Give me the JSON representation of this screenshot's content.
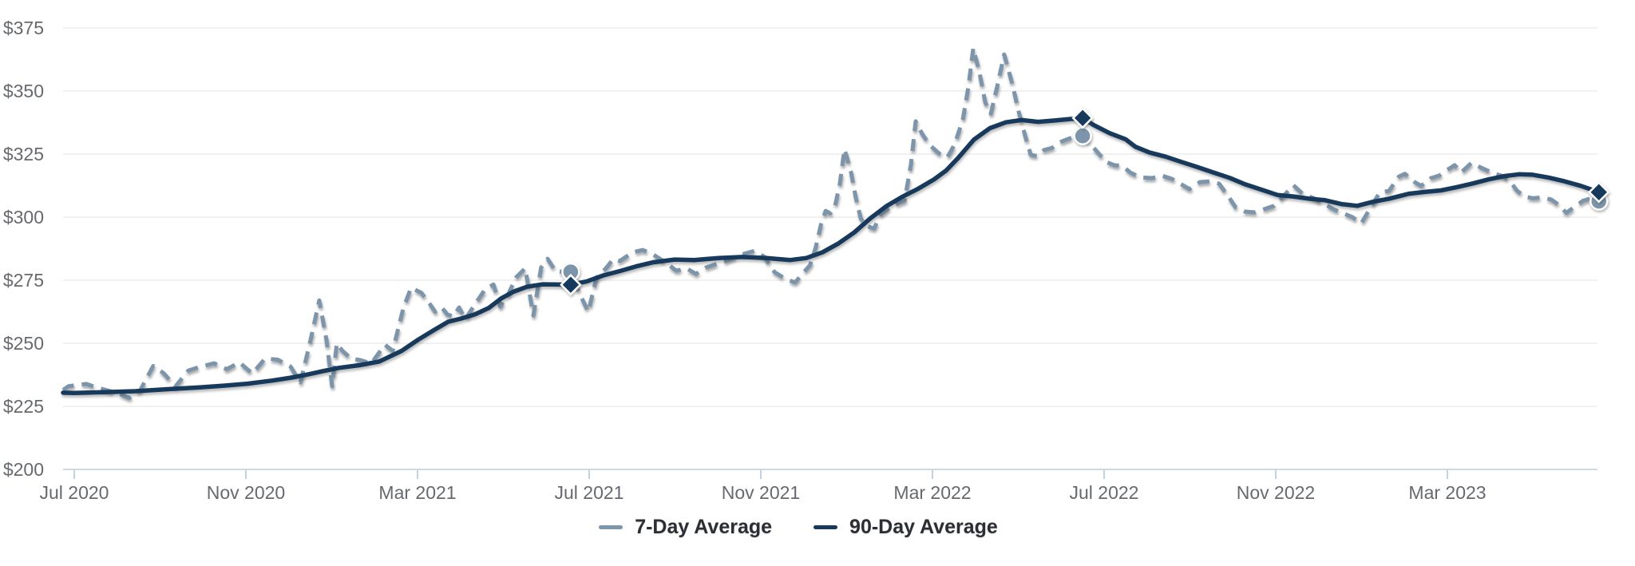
{
  "background": "#ffffff",
  "colors": {
    "seven_day": "#7d95ab",
    "ninety_day": "#17395c",
    "grid": "#e3e3e3",
    "baseline": "#ccdae8",
    "tick": "#c2d2e2",
    "axis_text": "#66696e",
    "legend_text": "#2b2f33",
    "marker_outline": "#ffffff"
  },
  "chart_data": {
    "type": "line",
    "title": "",
    "xlabel": "",
    "ylabel": "",
    "grid": true,
    "legend_position": "bottom",
    "x_axis": {
      "unit": "months since Jul 2020",
      "range": [
        -0.4,
        35.75
      ],
      "tick_values": [
        0,
        4,
        8,
        12,
        16,
        20,
        24,
        28,
        32
      ],
      "tick_labels": [
        "Jul 2020",
        "Nov 2020",
        "Mar 2021",
        "Jul 2021",
        "Nov 2021",
        "Mar 2022",
        "Jul 2022",
        "Nov 2022",
        "Mar 2023"
      ]
    },
    "y_axis": {
      "range": [
        200,
        375
      ],
      "tick_values": [
        200,
        225,
        250,
        275,
        300,
        325,
        350,
        375
      ],
      "tick_labels": [
        "$200",
        "$225",
        "$250",
        "$275",
        "$300",
        "$325",
        "$350",
        "$375"
      ],
      "prefix": "$"
    },
    "series": [
      {
        "name": "7-Day Average",
        "style": "dashed",
        "color": "#7d95ab",
        "points": [
          [
            -0.26,
            231.5
          ],
          [
            -0.13,
            233.0
          ],
          [
            0.28,
            233.9
          ],
          [
            0.54,
            232.4
          ],
          [
            0.8,
            231.2
          ],
          [
            1.06,
            230.0
          ],
          [
            1.28,
            228.3
          ],
          [
            1.54,
            231.5
          ],
          [
            1.84,
            241.0
          ],
          [
            2.08,
            238.2
          ],
          [
            2.36,
            232.9
          ],
          [
            2.66,
            239.2
          ],
          [
            2.96,
            240.8
          ],
          [
            3.26,
            242.1
          ],
          [
            3.55,
            239.7
          ],
          [
            3.85,
            242.4
          ],
          [
            4.15,
            238.0
          ],
          [
            4.45,
            244.0
          ],
          [
            4.74,
            243.5
          ],
          [
            5.04,
            240.8
          ],
          [
            5.27,
            234.5
          ],
          [
            5.49,
            250.0
          ],
          [
            5.71,
            267.0
          ],
          [
            5.88,
            251.0
          ],
          [
            6.01,
            233.0
          ],
          [
            6.12,
            250.0
          ],
          [
            6.25,
            247.0
          ],
          [
            6.45,
            244.0
          ],
          [
            6.68,
            243.3
          ],
          [
            6.92,
            242.0
          ],
          [
            7.24,
            249.4
          ],
          [
            7.42,
            247.0
          ],
          [
            7.67,
            264.0
          ],
          [
            7.85,
            272.0
          ],
          [
            8.09,
            270.0
          ],
          [
            8.27,
            266.0
          ],
          [
            8.41,
            262.5
          ],
          [
            8.56,
            264.3
          ],
          [
            8.69,
            261.5
          ],
          [
            8.83,
            260.6
          ],
          [
            8.97,
            264.2
          ],
          [
            9.11,
            259.5
          ],
          [
            9.34,
            265.5
          ],
          [
            9.58,
            271.5
          ],
          [
            9.77,
            273.3
          ],
          [
            9.93,
            264.5
          ],
          [
            10.12,
            269.6
          ],
          [
            10.29,
            276.0
          ],
          [
            10.51,
            279.7
          ],
          [
            10.7,
            261.0
          ],
          [
            10.88,
            280.0
          ],
          [
            11.03,
            283.5
          ],
          [
            11.22,
            278.5
          ],
          [
            11.57,
            278.3
          ],
          [
            11.78,
            269.6
          ],
          [
            11.98,
            262.5
          ],
          [
            12.17,
            276.0
          ],
          [
            12.39,
            279.7
          ],
          [
            12.56,
            283.4
          ],
          [
            12.71,
            282.6
          ],
          [
            13.02,
            286.1
          ],
          [
            13.25,
            287.0
          ],
          [
            13.49,
            285.2
          ],
          [
            13.73,
            282.6
          ],
          [
            14.03,
            278.8
          ],
          [
            14.27,
            279.7
          ],
          [
            14.49,
            277.5
          ],
          [
            14.73,
            280.1
          ],
          [
            15.16,
            282.5
          ],
          [
            15.53,
            285.1
          ],
          [
            15.85,
            286.6
          ],
          [
            16.09,
            284.2
          ],
          [
            16.32,
            278.2
          ],
          [
            16.6,
            275.3
          ],
          [
            16.8,
            274.1
          ],
          [
            17.02,
            278.5
          ],
          [
            17.15,
            281.0
          ],
          [
            17.28,
            288.0
          ],
          [
            17.4,
            297.0
          ],
          [
            17.51,
            302.5
          ],
          [
            17.62,
            301.5
          ],
          [
            17.73,
            304.5
          ],
          [
            17.84,
            313.0
          ],
          [
            17.95,
            327.0
          ],
          [
            18.1,
            318.0
          ],
          [
            18.21,
            308.0
          ],
          [
            18.33,
            299.5
          ],
          [
            18.46,
            296.5
          ],
          [
            18.64,
            295.5
          ],
          [
            18.79,
            301.0
          ],
          [
            18.98,
            303.5
          ],
          [
            19.2,
            305.5
          ],
          [
            19.35,
            306.5
          ],
          [
            19.5,
            321.0
          ],
          [
            19.61,
            338.0
          ],
          [
            19.76,
            333.0
          ],
          [
            19.94,
            328.5
          ],
          [
            20.15,
            325.3
          ],
          [
            20.35,
            323.8
          ],
          [
            20.52,
            329.0
          ],
          [
            20.71,
            339.0
          ],
          [
            20.84,
            352.0
          ],
          [
            20.95,
            367.0
          ],
          [
            21.1,
            357.0
          ],
          [
            21.23,
            345.5
          ],
          [
            21.36,
            341.0
          ],
          [
            21.51,
            352.0
          ],
          [
            21.67,
            364.5
          ],
          [
            21.86,
            352.8
          ],
          [
            22.01,
            341.8
          ],
          [
            22.16,
            332.3
          ],
          [
            22.29,
            324.7
          ],
          [
            22.44,
            324.2
          ],
          [
            22.6,
            326.6
          ],
          [
            22.79,
            327.5
          ],
          [
            23.01,
            330.0
          ],
          [
            23.24,
            331.5
          ],
          [
            23.5,
            332.2
          ],
          [
            23.68,
            329.1
          ],
          [
            23.87,
            325.3
          ],
          [
            24.06,
            321.8
          ],
          [
            24.24,
            320.6
          ],
          [
            24.43,
            320.3
          ],
          [
            24.61,
            317.7
          ],
          [
            24.84,
            315.8
          ],
          [
            25.12,
            315.5
          ],
          [
            25.34,
            316.5
          ],
          [
            25.58,
            315.2
          ],
          [
            25.77,
            313.3
          ],
          [
            25.99,
            311.1
          ],
          [
            26.23,
            313.9
          ],
          [
            26.46,
            314.2
          ],
          [
            26.68,
            313.3
          ],
          [
            26.88,
            308.6
          ],
          [
            27.07,
            303.8
          ],
          [
            27.29,
            302.2
          ],
          [
            27.52,
            301.9
          ],
          [
            27.74,
            303.2
          ],
          [
            27.96,
            304.5
          ],
          [
            28.19,
            308.5
          ],
          [
            28.41,
            312.7
          ],
          [
            28.63,
            309.2
          ],
          [
            28.87,
            307.6
          ],
          [
            29.12,
            305.4
          ],
          [
            29.34,
            303.2
          ],
          [
            29.56,
            301.6
          ],
          [
            29.79,
            300.0
          ],
          [
            29.99,
            297.5
          ],
          [
            30.2,
            303.5
          ],
          [
            30.42,
            309.7
          ],
          [
            30.64,
            310.4
          ],
          [
            30.87,
            316.1
          ],
          [
            31.01,
            317.2
          ],
          [
            31.24,
            313.9
          ],
          [
            31.39,
            312.4
          ],
          [
            31.61,
            315.4
          ],
          [
            31.81,
            316.5
          ],
          [
            32.02,
            319.0
          ],
          [
            32.17,
            320.6
          ],
          [
            32.32,
            317.7
          ],
          [
            32.56,
            321.5
          ],
          [
            32.8,
            319.5
          ],
          [
            33.06,
            317.5
          ],
          [
            33.3,
            316.2
          ],
          [
            33.47,
            314.0
          ],
          [
            33.62,
            310.5
          ],
          [
            33.8,
            308.2
          ],
          [
            33.99,
            307.5
          ],
          [
            34.21,
            307.8
          ],
          [
            34.42,
            307.0
          ],
          [
            34.6,
            304.8
          ],
          [
            34.77,
            301.7
          ],
          [
            34.96,
            304.0
          ],
          [
            35.16,
            306.5
          ],
          [
            35.35,
            307.5
          ],
          [
            35.53,
            306.3
          ]
        ]
      },
      {
        "name": "90-Day Average",
        "style": "solid",
        "color": "#17395c",
        "points": [
          [
            -0.26,
            230.4
          ],
          [
            0.0,
            230.3
          ],
          [
            0.69,
            230.6
          ],
          [
            1.43,
            231.0
          ],
          [
            2.18,
            231.8
          ],
          [
            2.92,
            232.5
          ],
          [
            3.48,
            233.2
          ],
          [
            4.04,
            234.0
          ],
          [
            4.6,
            235.2
          ],
          [
            5.06,
            236.4
          ],
          [
            5.43,
            237.6
          ],
          [
            5.8,
            239.0
          ],
          [
            6.18,
            240.3
          ],
          [
            6.64,
            241.3
          ],
          [
            7.11,
            242.8
          ],
          [
            7.63,
            247.0
          ],
          [
            8.02,
            251.5
          ],
          [
            8.41,
            255.5
          ],
          [
            8.71,
            258.5
          ],
          [
            9.02,
            259.8
          ],
          [
            9.34,
            261.5
          ],
          [
            9.66,
            264.0
          ],
          [
            9.95,
            267.8
          ],
          [
            10.23,
            270.4
          ],
          [
            10.55,
            272.4
          ],
          [
            10.92,
            273.4
          ],
          [
            11.29,
            273.3
          ],
          [
            11.55,
            273.2
          ],
          [
            11.94,
            274.5
          ],
          [
            12.33,
            276.9
          ],
          [
            12.71,
            278.6
          ],
          [
            13.1,
            280.5
          ],
          [
            13.49,
            282.1
          ],
          [
            13.99,
            283.2
          ],
          [
            14.45,
            283.0
          ],
          [
            15.01,
            283.8
          ],
          [
            15.57,
            284.2
          ],
          [
            16.13,
            283.8
          ],
          [
            16.69,
            283.0
          ],
          [
            17.06,
            283.8
          ],
          [
            17.43,
            286.0
          ],
          [
            17.8,
            289.5
          ],
          [
            18.18,
            294.0
          ],
          [
            18.55,
            299.5
          ],
          [
            18.92,
            304.3
          ],
          [
            19.29,
            308.0
          ],
          [
            19.67,
            311.3
          ],
          [
            20.04,
            315.0
          ],
          [
            20.32,
            318.5
          ],
          [
            20.6,
            323.5
          ],
          [
            20.97,
            330.8
          ],
          [
            21.34,
            335.3
          ],
          [
            21.71,
            337.6
          ],
          [
            22.08,
            338.5
          ],
          [
            22.46,
            337.8
          ],
          [
            22.83,
            338.3
          ],
          [
            23.2,
            338.9
          ],
          [
            23.5,
            339.3
          ],
          [
            23.76,
            336.5
          ],
          [
            24.13,
            333.3
          ],
          [
            24.5,
            330.9
          ],
          [
            24.73,
            327.9
          ],
          [
            25.06,
            325.6
          ],
          [
            25.43,
            324.0
          ],
          [
            25.8,
            321.9
          ],
          [
            26.18,
            319.8
          ],
          [
            26.55,
            317.7
          ],
          [
            26.92,
            315.6
          ],
          [
            27.29,
            313.0
          ],
          [
            27.67,
            310.9
          ],
          [
            28.04,
            308.8
          ],
          [
            28.41,
            308.2
          ],
          [
            28.78,
            307.3
          ],
          [
            29.15,
            306.7
          ],
          [
            29.53,
            305.2
          ],
          [
            29.9,
            304.5
          ],
          [
            30.27,
            306.1
          ],
          [
            30.64,
            307.3
          ],
          [
            31.11,
            309.3
          ],
          [
            31.48,
            310.0
          ],
          [
            31.85,
            310.6
          ],
          [
            32.22,
            311.9
          ],
          [
            32.6,
            313.4
          ],
          [
            32.97,
            315.0
          ],
          [
            33.34,
            316.3
          ],
          [
            33.67,
            317.0
          ],
          [
            33.99,
            316.8
          ],
          [
            34.36,
            315.7
          ],
          [
            34.73,
            314.2
          ],
          [
            35.11,
            312.4
          ],
          [
            35.53,
            309.9
          ]
        ]
      }
    ],
    "markers": [
      {
        "t": 11.57,
        "series": "7-Day Average",
        "value": 278.3,
        "shape": "circle"
      },
      {
        "t": 11.57,
        "series": "90-Day Average",
        "value": 273.2,
        "shape": "diamond"
      },
      {
        "t": 23.5,
        "series": "7-Day Average",
        "value": 332.2,
        "shape": "circle"
      },
      {
        "t": 23.5,
        "series": "90-Day Average",
        "value": 339.3,
        "shape": "diamond"
      },
      {
        "t": 35.53,
        "series": "7-Day Average",
        "value": 306.3,
        "shape": "circle"
      },
      {
        "t": 35.53,
        "series": "90-Day Average",
        "value": 309.9,
        "shape": "diamond"
      }
    ],
    "legend": [
      {
        "label": "7-Day Average"
      },
      {
        "label": "90-Day Average"
      }
    ]
  }
}
